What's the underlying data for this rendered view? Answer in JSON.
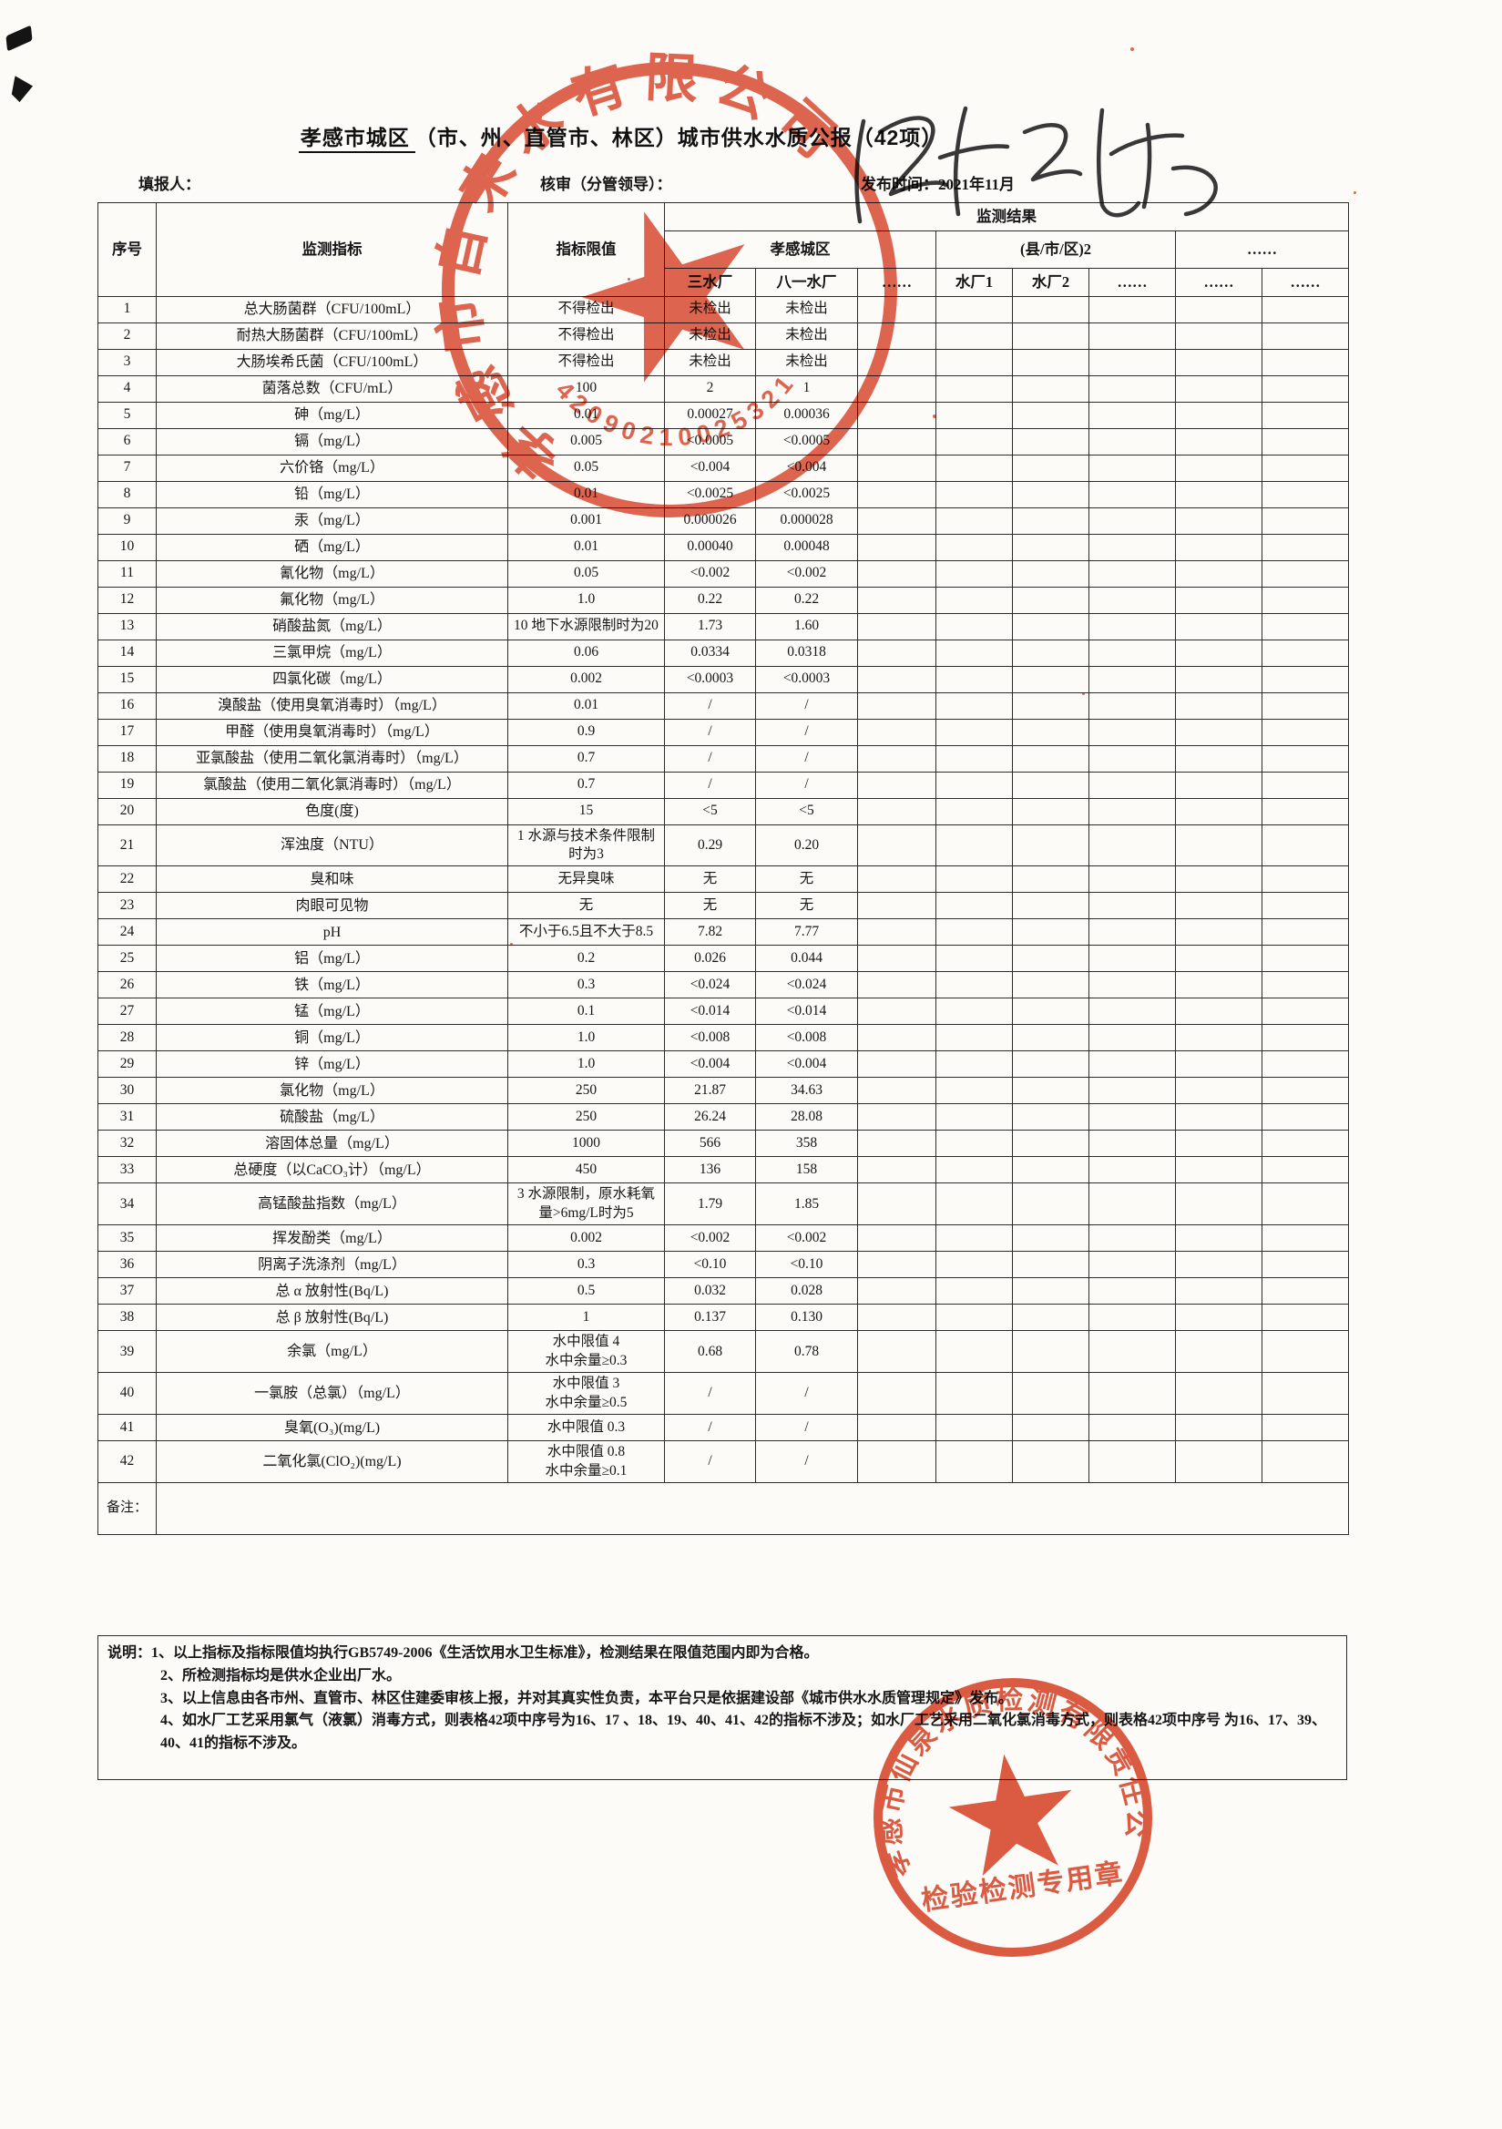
{
  "doc": {
    "title_underline": "孝感市城区",
    "title_rest": "（市、州、直管市、林区）城市供水水质公报（42项）"
  },
  "meta": {
    "filler_label": "填报人：",
    "reviewer_label": "核审（分管领导）：",
    "publish_label": "发布时间：",
    "publish_value": "2021年11月"
  },
  "table": {
    "headers": {
      "seq": "序号",
      "indicator": "监测指标",
      "limit": "指标限值",
      "result": "监测结果"
    },
    "groups": {
      "g1": "孝感城区",
      "g2": "(县/市/区)2",
      "g3": "……"
    },
    "subheaders": [
      "三水厂",
      "八一水厂",
      "……",
      "水厂1",
      "水厂2",
      "……",
      "……",
      "……"
    ],
    "remark_label": "备注：",
    "rows": [
      {
        "n": "1",
        "name": "总大肠菌群（CFU/100mL）",
        "limit": "不得检出",
        "v1": "未检出",
        "v2": "未检出"
      },
      {
        "n": "2",
        "name": "耐热大肠菌群（CFU/100mL）",
        "limit": "不得检出",
        "v1": "未检出",
        "v2": "未检出"
      },
      {
        "n": "3",
        "name": "大肠埃希氏菌（CFU/100mL）",
        "limit": "不得检出",
        "v1": "未检出",
        "v2": "未检出"
      },
      {
        "n": "4",
        "name": "菌落总数（CFU/mL）",
        "limit": "100",
        "v1": "2",
        "v2": "1"
      },
      {
        "n": "5",
        "name": "砷（mg/L）",
        "limit": "0.01",
        "v1": "0.00027",
        "v2": "0.00036"
      },
      {
        "n": "6",
        "name": "镉（mg/L）",
        "limit": "0.005",
        "v1": "<0.0005",
        "v2": "<0.0005"
      },
      {
        "n": "7",
        "name": "六价铬（mg/L）",
        "limit": "0.05",
        "v1": "<0.004",
        "v2": "<0.004"
      },
      {
        "n": "8",
        "name": "铅（mg/L）",
        "limit": "0.01",
        "v1": "<0.0025",
        "v2": "<0.0025"
      },
      {
        "n": "9",
        "name": "汞（mg/L）",
        "limit": "0.001",
        "v1": "0.000026",
        "v2": "0.000028"
      },
      {
        "n": "10",
        "name": "硒（mg/L）",
        "limit": "0.01",
        "v1": "0.00040",
        "v2": "0.00048"
      },
      {
        "n": "11",
        "name": "氰化物（mg/L）",
        "limit": "0.05",
        "v1": "<0.002",
        "v2": "<0.002"
      },
      {
        "n": "12",
        "name": "氟化物（mg/L）",
        "limit": "1.0",
        "v1": "0.22",
        "v2": "0.22"
      },
      {
        "n": "13",
        "name": "硝酸盐氮（mg/L）",
        "limit": "10 地下水源限制时为20",
        "v1": "1.73",
        "v2": "1.60"
      },
      {
        "n": "14",
        "name": "三氯甲烷（mg/L）",
        "limit": "0.06",
        "v1": "0.0334",
        "v2": "0.0318"
      },
      {
        "n": "15",
        "name": "四氯化碳（mg/L）",
        "limit": "0.002",
        "v1": "<0.0003",
        "v2": "<0.0003"
      },
      {
        "n": "16",
        "name": "溴酸盐（使用臭氧消毒时）（mg/L）",
        "limit": "0.01",
        "v1": "/",
        "v2": "/"
      },
      {
        "n": "17",
        "name": "甲醛（使用臭氧消毒时）（mg/L）",
        "limit": "0.9",
        "v1": "/",
        "v2": "/"
      },
      {
        "n": "18",
        "name": "亚氯酸盐（使用二氧化氯消毒时）（mg/L）",
        "limit": "0.7",
        "v1": "/",
        "v2": "/"
      },
      {
        "n": "19",
        "name": "氯酸盐（使用二氧化氯消毒时）（mg/L）",
        "limit": "0.7",
        "v1": "/",
        "v2": "/"
      },
      {
        "n": "20",
        "name": "色度(度)",
        "limit": "15",
        "v1": "<5",
        "v2": "<5"
      },
      {
        "n": "21",
        "name": "浑浊度（NTU）",
        "limit": "1  水源与技术条件限制时为3",
        "v1": "0.29",
        "v2": "0.20"
      },
      {
        "n": "22",
        "name": "臭和味",
        "limit": "无异臭味",
        "v1": "无",
        "v2": "无"
      },
      {
        "n": "23",
        "name": "肉眼可见物",
        "limit": "无",
        "v1": "无",
        "v2": "无"
      },
      {
        "n": "24",
        "name": "pH",
        "limit": "不小于6.5且不大于8.5",
        "v1": "7.82",
        "v2": "7.77"
      },
      {
        "n": "25",
        "name": "铝（mg/L）",
        "limit": "0.2",
        "v1": "0.026",
        "v2": "0.044"
      },
      {
        "n": "26",
        "name": "铁（mg/L）",
        "limit": "0.3",
        "v1": "<0.024",
        "v2": "<0.024"
      },
      {
        "n": "27",
        "name": "锰（mg/L）",
        "limit": "0.1",
        "v1": "<0.014",
        "v2": "<0.014"
      },
      {
        "n": "28",
        "name": "铜（mg/L）",
        "limit": "1.0",
        "v1": "<0.008",
        "v2": "<0.008"
      },
      {
        "n": "29",
        "name": "锌（mg/L）",
        "limit": "1.0",
        "v1": "<0.004",
        "v2": "<0.004"
      },
      {
        "n": "30",
        "name": "氯化物（mg/L）",
        "limit": "250",
        "v1": "21.87",
        "v2": "34.63"
      },
      {
        "n": "31",
        "name": "硫酸盐（mg/L）",
        "limit": "250",
        "v1": "26.24",
        "v2": "28.08"
      },
      {
        "n": "32",
        "name": "溶固体总量（mg/L）",
        "limit": "1000",
        "v1": "566",
        "v2": "358"
      },
      {
        "n": "33",
        "name": "总硬度（以CaCO₃计）（mg/L）",
        "limit": "450",
        "v1": "136",
        "v2": "158"
      },
      {
        "n": "34",
        "name": "高锰酸盐指数（mg/L）",
        "limit": "3  水源限制，原水耗氧量>6mg/L时为5",
        "v1": "1.79",
        "v2": "1.85"
      },
      {
        "n": "35",
        "name": "挥发酚类（mg/L）",
        "limit": "0.002",
        "v1": "<0.002",
        "v2": "<0.002"
      },
      {
        "n": "36",
        "name": "阴离子洗涤剂（mg/L）",
        "limit": "0.3",
        "v1": "<0.10",
        "v2": "<0.10"
      },
      {
        "n": "37",
        "name": "总 α 放射性(Bq/L)",
        "limit": "0.5",
        "v1": "0.032",
        "v2": "0.028"
      },
      {
        "n": "38",
        "name": "总 β 放射性(Bq/L)",
        "limit": "1",
        "v1": "0.137",
        "v2": "0.130"
      },
      {
        "n": "39",
        "name": "余氯（mg/L）",
        "limit": "水中限值 4\n水中余量≥0.3",
        "v1": "0.68",
        "v2": "0.78"
      },
      {
        "n": "40",
        "name": "一氯胺（总氯）（mg/L）",
        "limit": "水中限值 3\n水中余量≥0.5",
        "v1": "/",
        "v2": "/"
      },
      {
        "n": "41",
        "name": "臭氧(O₃)(mg/L)",
        "limit": "水中限值 0.3",
        "v1": "/",
        "v2": "/"
      },
      {
        "n": "42",
        "name": "二氧化氯(ClO₂)(mg/L)",
        "limit": "水中限值 0.8\n水中余量≥0.1",
        "v1": "/",
        "v2": "/"
      }
    ]
  },
  "notes": {
    "label": "说明：",
    "items": [
      "1、以上指标及指标限值均执行GB5749-2006《生活饮用水卫生标准》，检测结果在限值范围内即为合格。",
      "2、所检测指标均是供水企业出厂水。",
      "3、以上信息由各市州、直管市、林区住建委审核上报，并对其真实性负责，本平台只是依据建设部《城市供水水质管理规定》发布。",
      "4、如水厂工艺采用氯气（液氯）消毒方式，则表格42项中序号为16、17 、18、19、40、41、42的指标不涉及；如水厂工艺采用二氧化氯消毒方式，则表格42项中序号 为16、17、39、40、41的指标不涉及。"
    ]
  },
  "stamps": {
    "top": {
      "company": "孝感市自来水有限公司",
      "serial": "42090210025321"
    },
    "bottom": {
      "company": "孝感市仙泉水质检测有限责任公司",
      "line2": "检验检测专用章"
    }
  },
  "colors": {
    "stamp_red": "#d9452a",
    "ink": "#1c1c1c"
  }
}
